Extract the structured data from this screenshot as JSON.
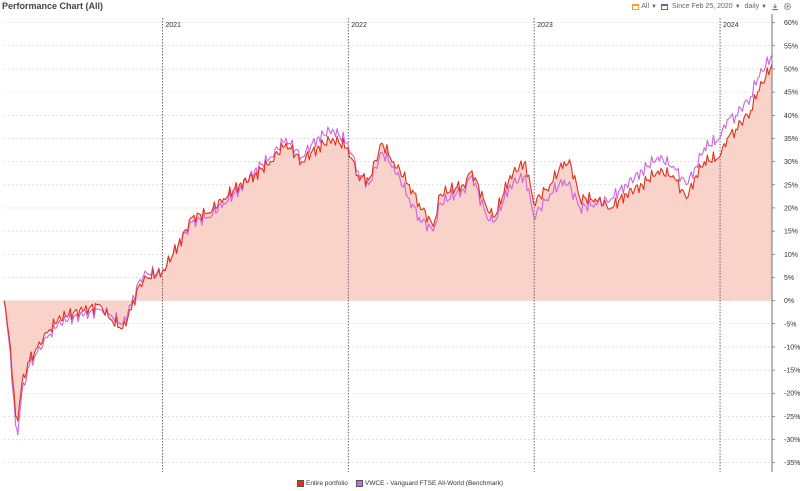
{
  "header": {
    "title": "Performance Chart (All)",
    "range_label": "All",
    "since_label": "Since Feb 25, 2020",
    "interval_label": "daily",
    "download_icon": "download-icon",
    "settings_icon": "gear-icon"
  },
  "colors": {
    "portfolio": "#e0321e",
    "benchmark": "#cc66dd",
    "fill": "#f9d2ca",
    "grid": "#cfcfcf"
  },
  "chart_data": {
    "type": "line",
    "title": "Performance Chart (All)",
    "ylim": [
      -37,
      61
    ],
    "xlim": [
      "2020-02-25",
      "2024-04-12"
    ],
    "y_ticks": [
      -35,
      -30,
      -25,
      -20,
      -15,
      -10,
      -5,
      0,
      5,
      10,
      15,
      20,
      25,
      30,
      35,
      40,
      45,
      50,
      55,
      60
    ],
    "y_tick_labels": [
      "-35%",
      "-30%",
      "-25%",
      "-20%",
      "-15%",
      "-10%",
      "-5%",
      "0%",
      "5%",
      "10%",
      "15%",
      "20%",
      "25%",
      "30%",
      "35%",
      "40%",
      "45%",
      "50%",
      "55%",
      "60%"
    ],
    "year_markers": [
      {
        "date": "2021-01-01",
        "label": "2021"
      },
      {
        "date": "2022-01-01",
        "label": "2022"
      },
      {
        "date": "2023-01-01",
        "label": "2023"
      },
      {
        "date": "2024-01-01",
        "label": "2024"
      }
    ],
    "series": [
      {
        "name": "Entire portfolio",
        "area": true,
        "x": [
          "2020-02-25",
          "2020-03-05",
          "2020-03-12",
          "2020-03-19",
          "2020-03-23",
          "2020-03-31",
          "2020-04-15",
          "2020-05-01",
          "2020-05-20",
          "2020-06-10",
          "2020-07-01",
          "2020-08-01",
          "2020-09-01",
          "2020-09-20",
          "2020-10-15",
          "2020-11-01",
          "2020-11-15",
          "2020-12-01",
          "2020-12-31",
          "2021-02-01",
          "2021-03-01",
          "2021-04-01",
          "2021-05-01",
          "2021-06-01",
          "2021-07-01",
          "2021-08-01",
          "2021-09-01",
          "2021-10-01",
          "2021-11-01",
          "2021-12-01",
          "2021-12-31",
          "2022-01-20",
          "2022-02-10",
          "2022-03-08",
          "2022-03-31",
          "2022-05-01",
          "2022-05-20",
          "2022-06-17",
          "2022-07-01",
          "2022-08-15",
          "2022-09-01",
          "2022-09-30",
          "2022-10-15",
          "2022-11-15",
          "2022-12-15",
          "2022-12-31",
          "2023-02-01",
          "2023-03-01",
          "2023-03-15",
          "2023-04-01",
          "2023-05-01",
          "2023-06-01",
          "2023-07-01",
          "2023-08-01",
          "2023-09-01",
          "2023-10-01",
          "2023-10-27",
          "2023-11-15",
          "2023-12-01",
          "2023-12-31",
          "2024-01-15",
          "2024-02-01",
          "2024-03-01",
          "2024-03-15",
          "2024-04-12"
        ],
        "values": [
          0,
          -7,
          -16,
          -25,
          -26,
          -18,
          -13,
          -10,
          -7,
          -4,
          -3,
          -2,
          -1,
          -4,
          -6,
          -2,
          3,
          5,
          6,
          12,
          18,
          19,
          22,
          25,
          27,
          30,
          34,
          30,
          33,
          35,
          33,
          27,
          26,
          34,
          30,
          25,
          21,
          16,
          23,
          25,
          28,
          20,
          18,
          27,
          30,
          21,
          25,
          30,
          29,
          22,
          22,
          20,
          23,
          25,
          28,
          27,
          22,
          27,
          30,
          31,
          35,
          37,
          41,
          45,
          51
        ]
      },
      {
        "name": "VWCE - Vanguard FTSE All-World (Benchmark)",
        "area": false,
        "x": [
          "2020-02-25",
          "2020-03-05",
          "2020-03-12",
          "2020-03-19",
          "2020-03-23",
          "2020-03-31",
          "2020-04-15",
          "2020-05-01",
          "2020-05-20",
          "2020-06-10",
          "2020-07-01",
          "2020-08-01",
          "2020-09-01",
          "2020-09-20",
          "2020-10-15",
          "2020-11-01",
          "2020-11-15",
          "2020-12-01",
          "2020-12-31",
          "2021-02-01",
          "2021-03-01",
          "2021-04-01",
          "2021-05-01",
          "2021-06-01",
          "2021-07-01",
          "2021-08-01",
          "2021-09-01",
          "2021-10-01",
          "2021-11-01",
          "2021-12-01",
          "2021-12-31",
          "2022-01-20",
          "2022-02-10",
          "2022-03-08",
          "2022-03-31",
          "2022-05-01",
          "2022-05-20",
          "2022-06-17",
          "2022-07-01",
          "2022-08-15",
          "2022-09-01",
          "2022-09-30",
          "2022-10-15",
          "2022-11-15",
          "2022-12-15",
          "2022-12-31",
          "2023-02-01",
          "2023-03-01",
          "2023-03-15",
          "2023-04-01",
          "2023-05-01",
          "2023-06-01",
          "2023-07-01",
          "2023-08-01",
          "2023-09-01",
          "2023-10-01",
          "2023-10-27",
          "2023-11-15",
          "2023-12-01",
          "2023-12-31",
          "2024-01-15",
          "2024-02-01",
          "2024-03-01",
          "2024-03-15",
          "2024-04-12"
        ],
        "values": [
          0,
          -8,
          -18,
          -27,
          -29,
          -20,
          -14,
          -11,
          -8,
          -5,
          -4,
          -3,
          -2,
          -3,
          -5,
          -1,
          4,
          6,
          6,
          12,
          17,
          18,
          21,
          24,
          28,
          31,
          35,
          31,
          35,
          37,
          34,
          28,
          25,
          32,
          29,
          22,
          18,
          15,
          21,
          24,
          27,
          18,
          17,
          25,
          27,
          18,
          23,
          26,
          24,
          20,
          21,
          22,
          25,
          28,
          31,
          29,
          25,
          29,
          33,
          35,
          39,
          40,
          44,
          48,
          53
        ]
      }
    ]
  },
  "legend": {
    "items": [
      {
        "label": "Entire portfolio",
        "color": "#e0321e"
      },
      {
        "label": "VWCE - Vanguard FTSE All-World (Benchmark)",
        "color": "#cc66dd"
      }
    ]
  }
}
